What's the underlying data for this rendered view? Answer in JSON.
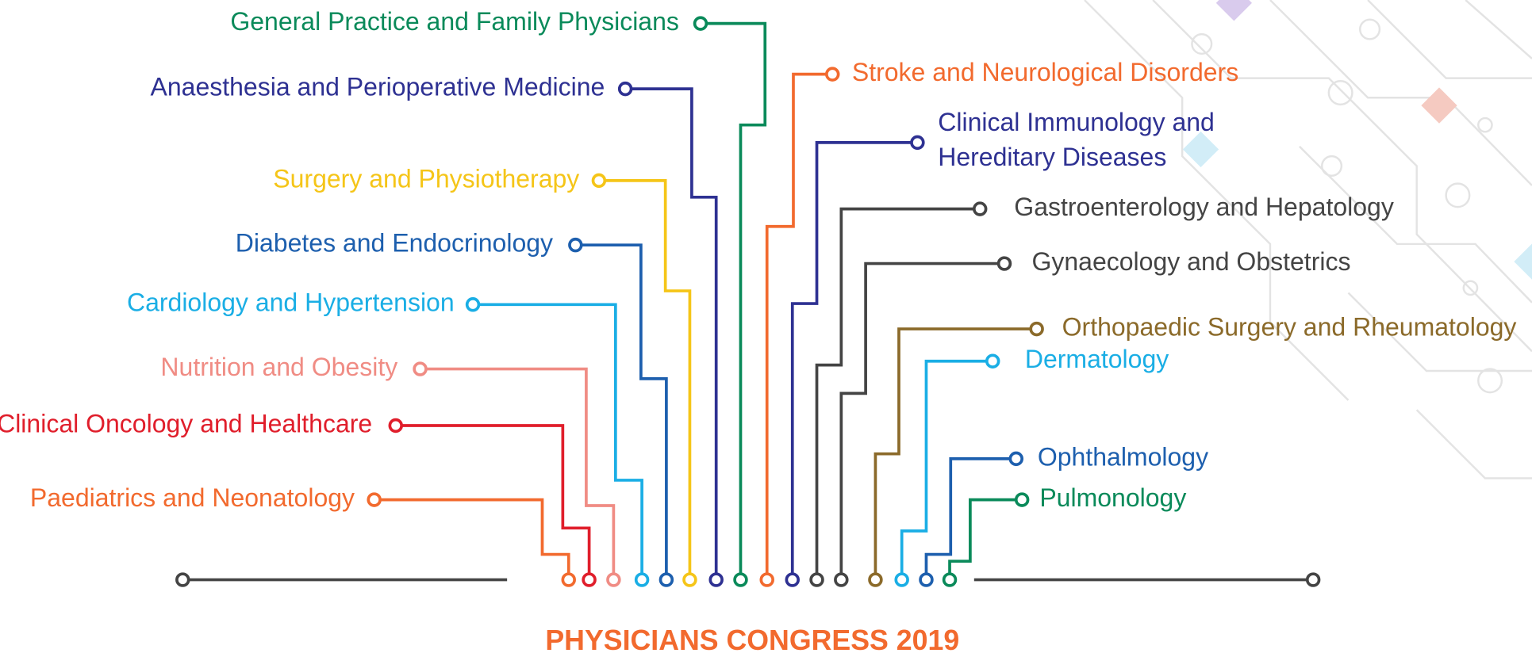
{
  "title": "PHYSICIANS CONGRESS 2019",
  "topics": [
    {
      "label": "General Practice and Family Physicians"
    },
    {
      "label": "Anaesthesia and Perioperative Medicine"
    },
    {
      "label": "Surgery and Physiotherapy"
    },
    {
      "label": "Diabetes and Endocrinology"
    },
    {
      "label": "Cardiology and Hypertension"
    },
    {
      "label": "Nutrition and Obesity"
    },
    {
      "label": "Clinical Oncology and Healthcare"
    },
    {
      "label": "Paediatrics and Neonatology"
    },
    {
      "label": "Stroke and Neurological Disorders"
    },
    {
      "label": [
        "Clinical Immunology and",
        "Hereditary Diseases"
      ]
    },
    {
      "label": "Gastroenterology and Hepatology"
    },
    {
      "label": "Gynaecology and Obstetrics"
    },
    {
      "label": "Orthopaedic Surgery and Rheumatology"
    },
    {
      "label": "Dermatology"
    },
    {
      "label": "Ophthalmology"
    },
    {
      "label": "Pulmonology"
    }
  ]
}
